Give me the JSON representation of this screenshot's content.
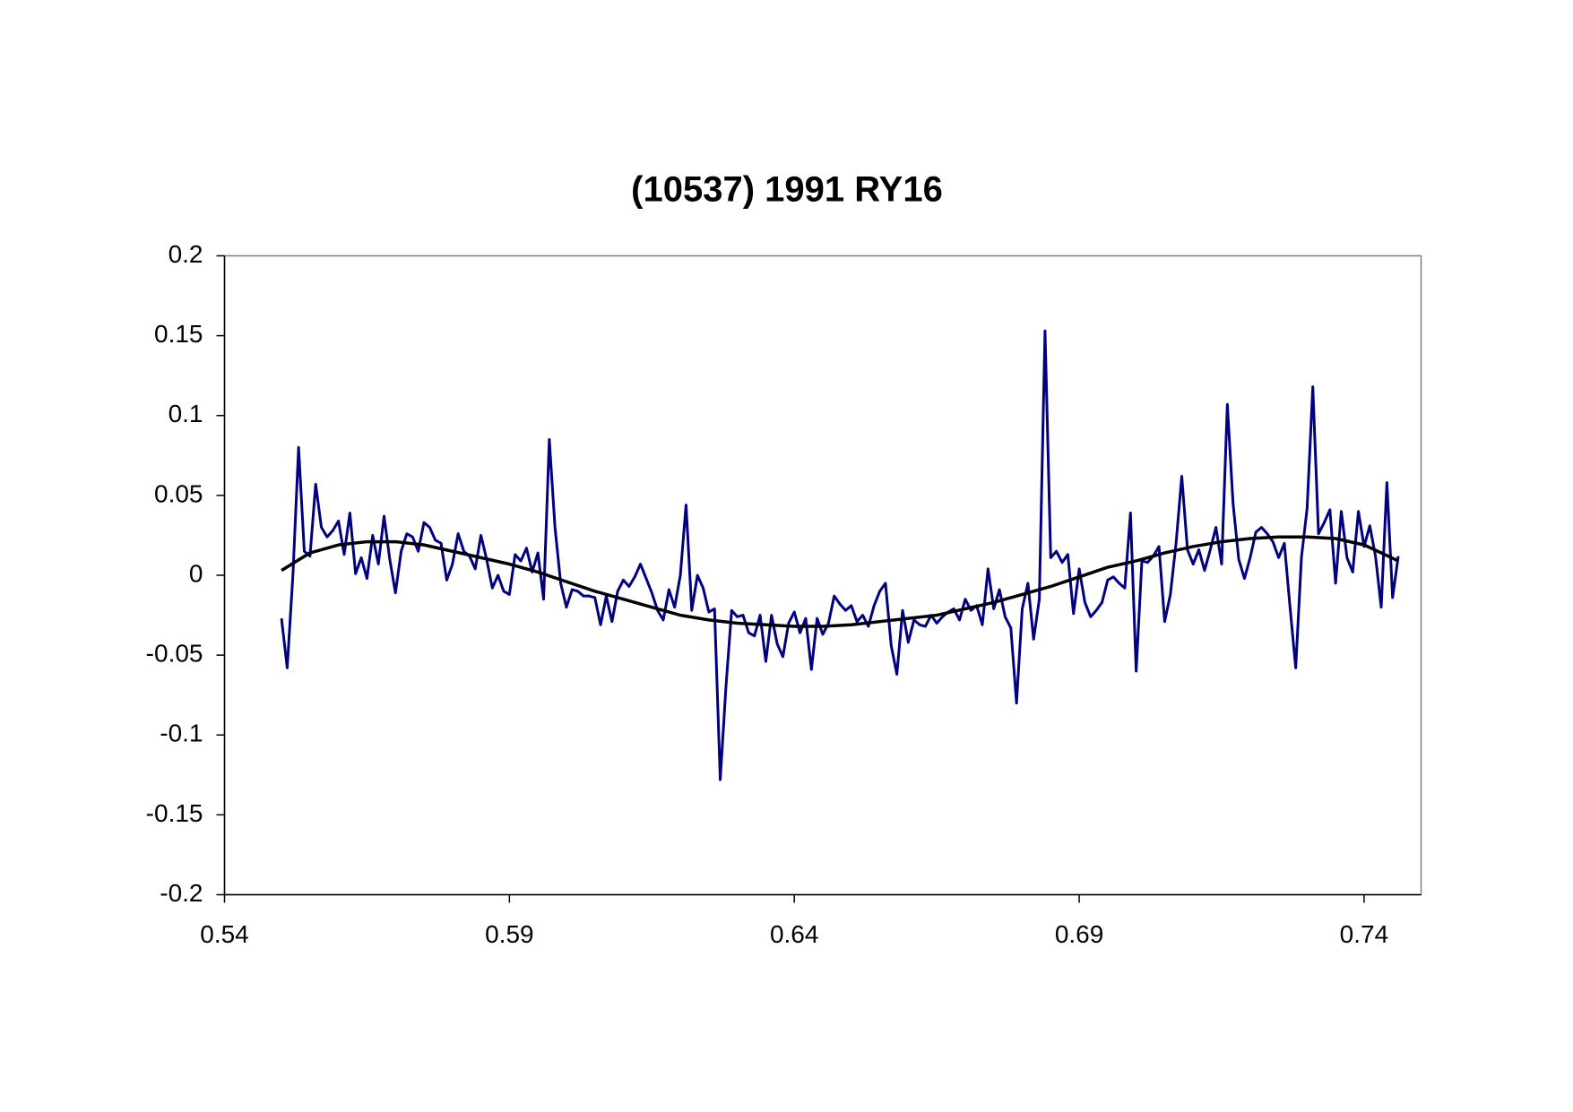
{
  "chart_data": {
    "type": "line",
    "title": "(10537) 1991 RY16",
    "xlim": [
      0.54,
      0.75
    ],
    "xticks": [
      0.54,
      0.59,
      0.64,
      0.69,
      0.74
    ],
    "ylim": [
      -0.2,
      0.2
    ],
    "yticks": [
      -0.2,
      -0.15,
      -0.1,
      -0.05,
      0,
      0.05,
      0.1,
      0.15,
      0.2
    ],
    "grid": false,
    "series": [
      {
        "color": "#000080",
        "x": [
          0.55,
          0.551,
          0.552,
          0.553,
          0.554,
          0.555,
          0.556,
          0.557,
          0.558,
          0.559,
          0.56,
          0.561,
          0.562,
          0.563,
          0.564,
          0.565,
          0.566,
          0.567,
          0.568,
          0.569,
          0.57,
          0.571,
          0.572,
          0.573,
          0.574,
          0.575,
          0.576,
          0.577,
          0.578,
          0.579,
          0.58,
          0.581,
          0.582,
          0.583,
          0.584,
          0.585,
          0.586,
          0.587,
          0.588,
          0.589,
          0.59,
          0.591,
          0.592,
          0.593,
          0.594,
          0.595,
          0.596,
          0.597,
          0.598,
          0.599,
          0.6,
          0.601,
          0.602,
          0.603,
          0.604,
          0.605,
          0.606,
          0.607,
          0.608,
          0.609,
          0.61,
          0.611,
          0.612,
          0.613,
          0.614,
          0.615,
          0.616,
          0.617,
          0.618,
          0.619,
          0.62,
          0.621,
          0.622,
          0.623,
          0.624,
          0.625,
          0.626,
          0.627,
          0.628,
          0.629,
          0.63,
          0.631,
          0.632,
          0.633,
          0.634,
          0.635,
          0.636,
          0.637,
          0.638,
          0.639,
          0.64,
          0.641,
          0.642,
          0.643,
          0.644,
          0.645,
          0.646,
          0.647,
          0.648,
          0.649,
          0.65,
          0.651,
          0.652,
          0.653,
          0.654,
          0.655,
          0.656,
          0.657,
          0.658,
          0.659,
          0.66,
          0.661,
          0.662,
          0.663,
          0.664,
          0.665,
          0.666,
          0.667,
          0.668,
          0.669,
          0.67,
          0.671,
          0.672,
          0.673,
          0.674,
          0.675,
          0.676,
          0.677,
          0.678,
          0.679,
          0.68,
          0.681,
          0.682,
          0.683,
          0.684,
          0.685,
          0.686,
          0.687,
          0.688,
          0.689,
          0.69,
          0.691,
          0.692,
          0.693,
          0.694,
          0.695,
          0.696,
          0.697,
          0.698,
          0.699,
          0.7,
          0.701,
          0.702,
          0.703,
          0.704,
          0.705,
          0.706,
          0.707,
          0.708,
          0.709,
          0.71,
          0.711,
          0.712,
          0.713,
          0.714,
          0.715,
          0.716,
          0.717,
          0.718,
          0.719,
          0.72,
          0.721,
          0.722,
          0.723,
          0.724,
          0.725,
          0.726,
          0.727,
          0.728,
          0.729,
          0.73,
          0.731,
          0.732,
          0.733,
          0.734,
          0.735,
          0.736,
          0.737,
          0.738,
          0.739,
          0.74,
          0.741,
          0.742,
          0.743,
          0.744,
          0.745,
          0.746
        ],
        "values": [
          -0.027,
          -0.058,
          0.0,
          0.08,
          0.015,
          0.012,
          0.057,
          0.03,
          0.024,
          0.028,
          0.034,
          0.013,
          0.039,
          0.001,
          0.011,
          -0.002,
          0.025,
          0.007,
          0.037,
          0.01,
          -0.011,
          0.015,
          0.026,
          0.024,
          0.015,
          0.033,
          0.03,
          0.022,
          0.02,
          -0.003,
          0.007,
          0.026,
          0.015,
          0.012,
          0.004,
          0.025,
          0.01,
          -0.008,
          0.0,
          -0.01,
          -0.012,
          0.013,
          0.009,
          0.017,
          0.002,
          0.014,
          -0.015,
          0.085,
          0.03,
          -0.005,
          -0.02,
          -0.009,
          -0.01,
          -0.013,
          -0.013,
          -0.014,
          -0.031,
          -0.013,
          -0.029,
          -0.01,
          -0.003,
          -0.007,
          -0.001,
          0.007,
          -0.002,
          -0.011,
          -0.022,
          -0.028,
          -0.009,
          -0.02,
          0.0,
          0.044,
          -0.022,
          0.0,
          -0.008,
          -0.023,
          -0.021,
          -0.128,
          -0.07,
          -0.022,
          -0.026,
          -0.025,
          -0.036,
          -0.038,
          -0.025,
          -0.054,
          -0.025,
          -0.043,
          -0.051,
          -0.03,
          -0.023,
          -0.036,
          -0.027,
          -0.059,
          -0.027,
          -0.037,
          -0.03,
          -0.013,
          -0.018,
          -0.022,
          -0.019,
          -0.029,
          -0.025,
          -0.032,
          -0.019,
          -0.01,
          -0.005,
          -0.044,
          -0.062,
          -0.022,
          -0.042,
          -0.028,
          -0.031,
          -0.032,
          -0.025,
          -0.03,
          -0.026,
          -0.023,
          -0.021,
          -0.028,
          -0.015,
          -0.022,
          -0.019,
          -0.031,
          0.004,
          -0.021,
          -0.009,
          -0.026,
          -0.033,
          -0.08,
          -0.021,
          -0.005,
          -0.04,
          -0.015,
          0.153,
          0.011,
          0.015,
          0.008,
          0.013,
          -0.024,
          0.004,
          -0.017,
          -0.026,
          -0.022,
          -0.017,
          -0.003,
          -0.001,
          -0.005,
          -0.008,
          0.039,
          -0.06,
          0.009,
          0.008,
          0.012,
          0.018,
          -0.029,
          -0.012,
          0.02,
          0.062,
          0.016,
          0.007,
          0.016,
          0.003,
          0.016,
          0.03,
          0.007,
          0.107,
          0.045,
          0.01,
          -0.002,
          0.011,
          0.027,
          0.03,
          0.026,
          0.021,
          0.011,
          0.02,
          -0.02,
          -0.058,
          0.011,
          0.042,
          0.118,
          0.026,
          0.033,
          0.041,
          -0.005,
          0.04,
          0.011,
          0.002,
          0.04,
          0.018,
          0.031,
          0.012,
          -0.02,
          0.058,
          -0.014,
          0.012
        ]
      },
      {
        "color": "#000000",
        "x": [
          0.55,
          0.555,
          0.56,
          0.565,
          0.57,
          0.575,
          0.58,
          0.585,
          0.59,
          0.595,
          0.6,
          0.605,
          0.61,
          0.615,
          0.62,
          0.625,
          0.63,
          0.635,
          0.64,
          0.645,
          0.65,
          0.655,
          0.66,
          0.665,
          0.67,
          0.675,
          0.68,
          0.685,
          0.69,
          0.695,
          0.7,
          0.705,
          0.71,
          0.715,
          0.72,
          0.725,
          0.73,
          0.735,
          0.74,
          0.746
        ],
        "values": [
          0.003,
          0.014,
          0.019,
          0.021,
          0.021,
          0.019,
          0.015,
          0.011,
          0.007,
          0.002,
          -0.004,
          -0.01,
          -0.015,
          -0.02,
          -0.025,
          -0.028,
          -0.03,
          -0.031,
          -0.032,
          -0.032,
          -0.031,
          -0.029,
          -0.027,
          -0.025,
          -0.021,
          -0.017,
          -0.012,
          -0.007,
          -0.001,
          0.005,
          0.009,
          0.014,
          0.018,
          0.021,
          0.023,
          0.024,
          0.024,
          0.023,
          0.019,
          0.009
        ]
      }
    ]
  }
}
